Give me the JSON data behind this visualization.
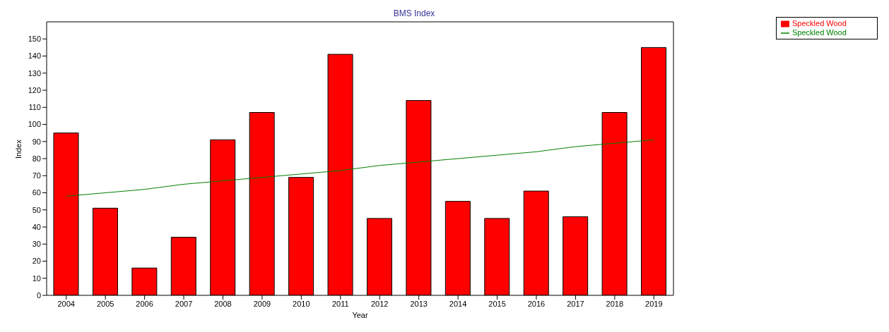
{
  "chart_data": {
    "type": "bar",
    "title": "BMS Index",
    "xlabel": "Year",
    "ylabel": "Index",
    "categories": [
      "2004",
      "2005",
      "2006",
      "2007",
      "2008",
      "2009",
      "2010",
      "2011",
      "2012",
      "2013",
      "2014",
      "2015",
      "2016",
      "2017",
      "2018",
      "2019"
    ],
    "series": [
      {
        "name": "Speckled Wood",
        "color": "#ff0000",
        "values": [
          95,
          51,
          16,
          34,
          91,
          107,
          69,
          141,
          45,
          114,
          55,
          45,
          61,
          46,
          107,
          145
        ]
      },
      {
        "name": "Speckled Wood",
        "type": "line",
        "color": "#008000",
        "values": [
          58,
          60,
          62,
          65,
          67,
          69,
          71,
          73,
          76,
          78,
          80,
          82,
          84,
          87,
          89,
          91
        ]
      }
    ],
    "ylim": [
      0,
      160
    ],
    "yticks": [
      0,
      10,
      20,
      30,
      40,
      50,
      60,
      70,
      80,
      90,
      100,
      110,
      120,
      130,
      140,
      150
    ],
    "legend": "top right",
    "marker": "none",
    "line_style": "solid"
  }
}
